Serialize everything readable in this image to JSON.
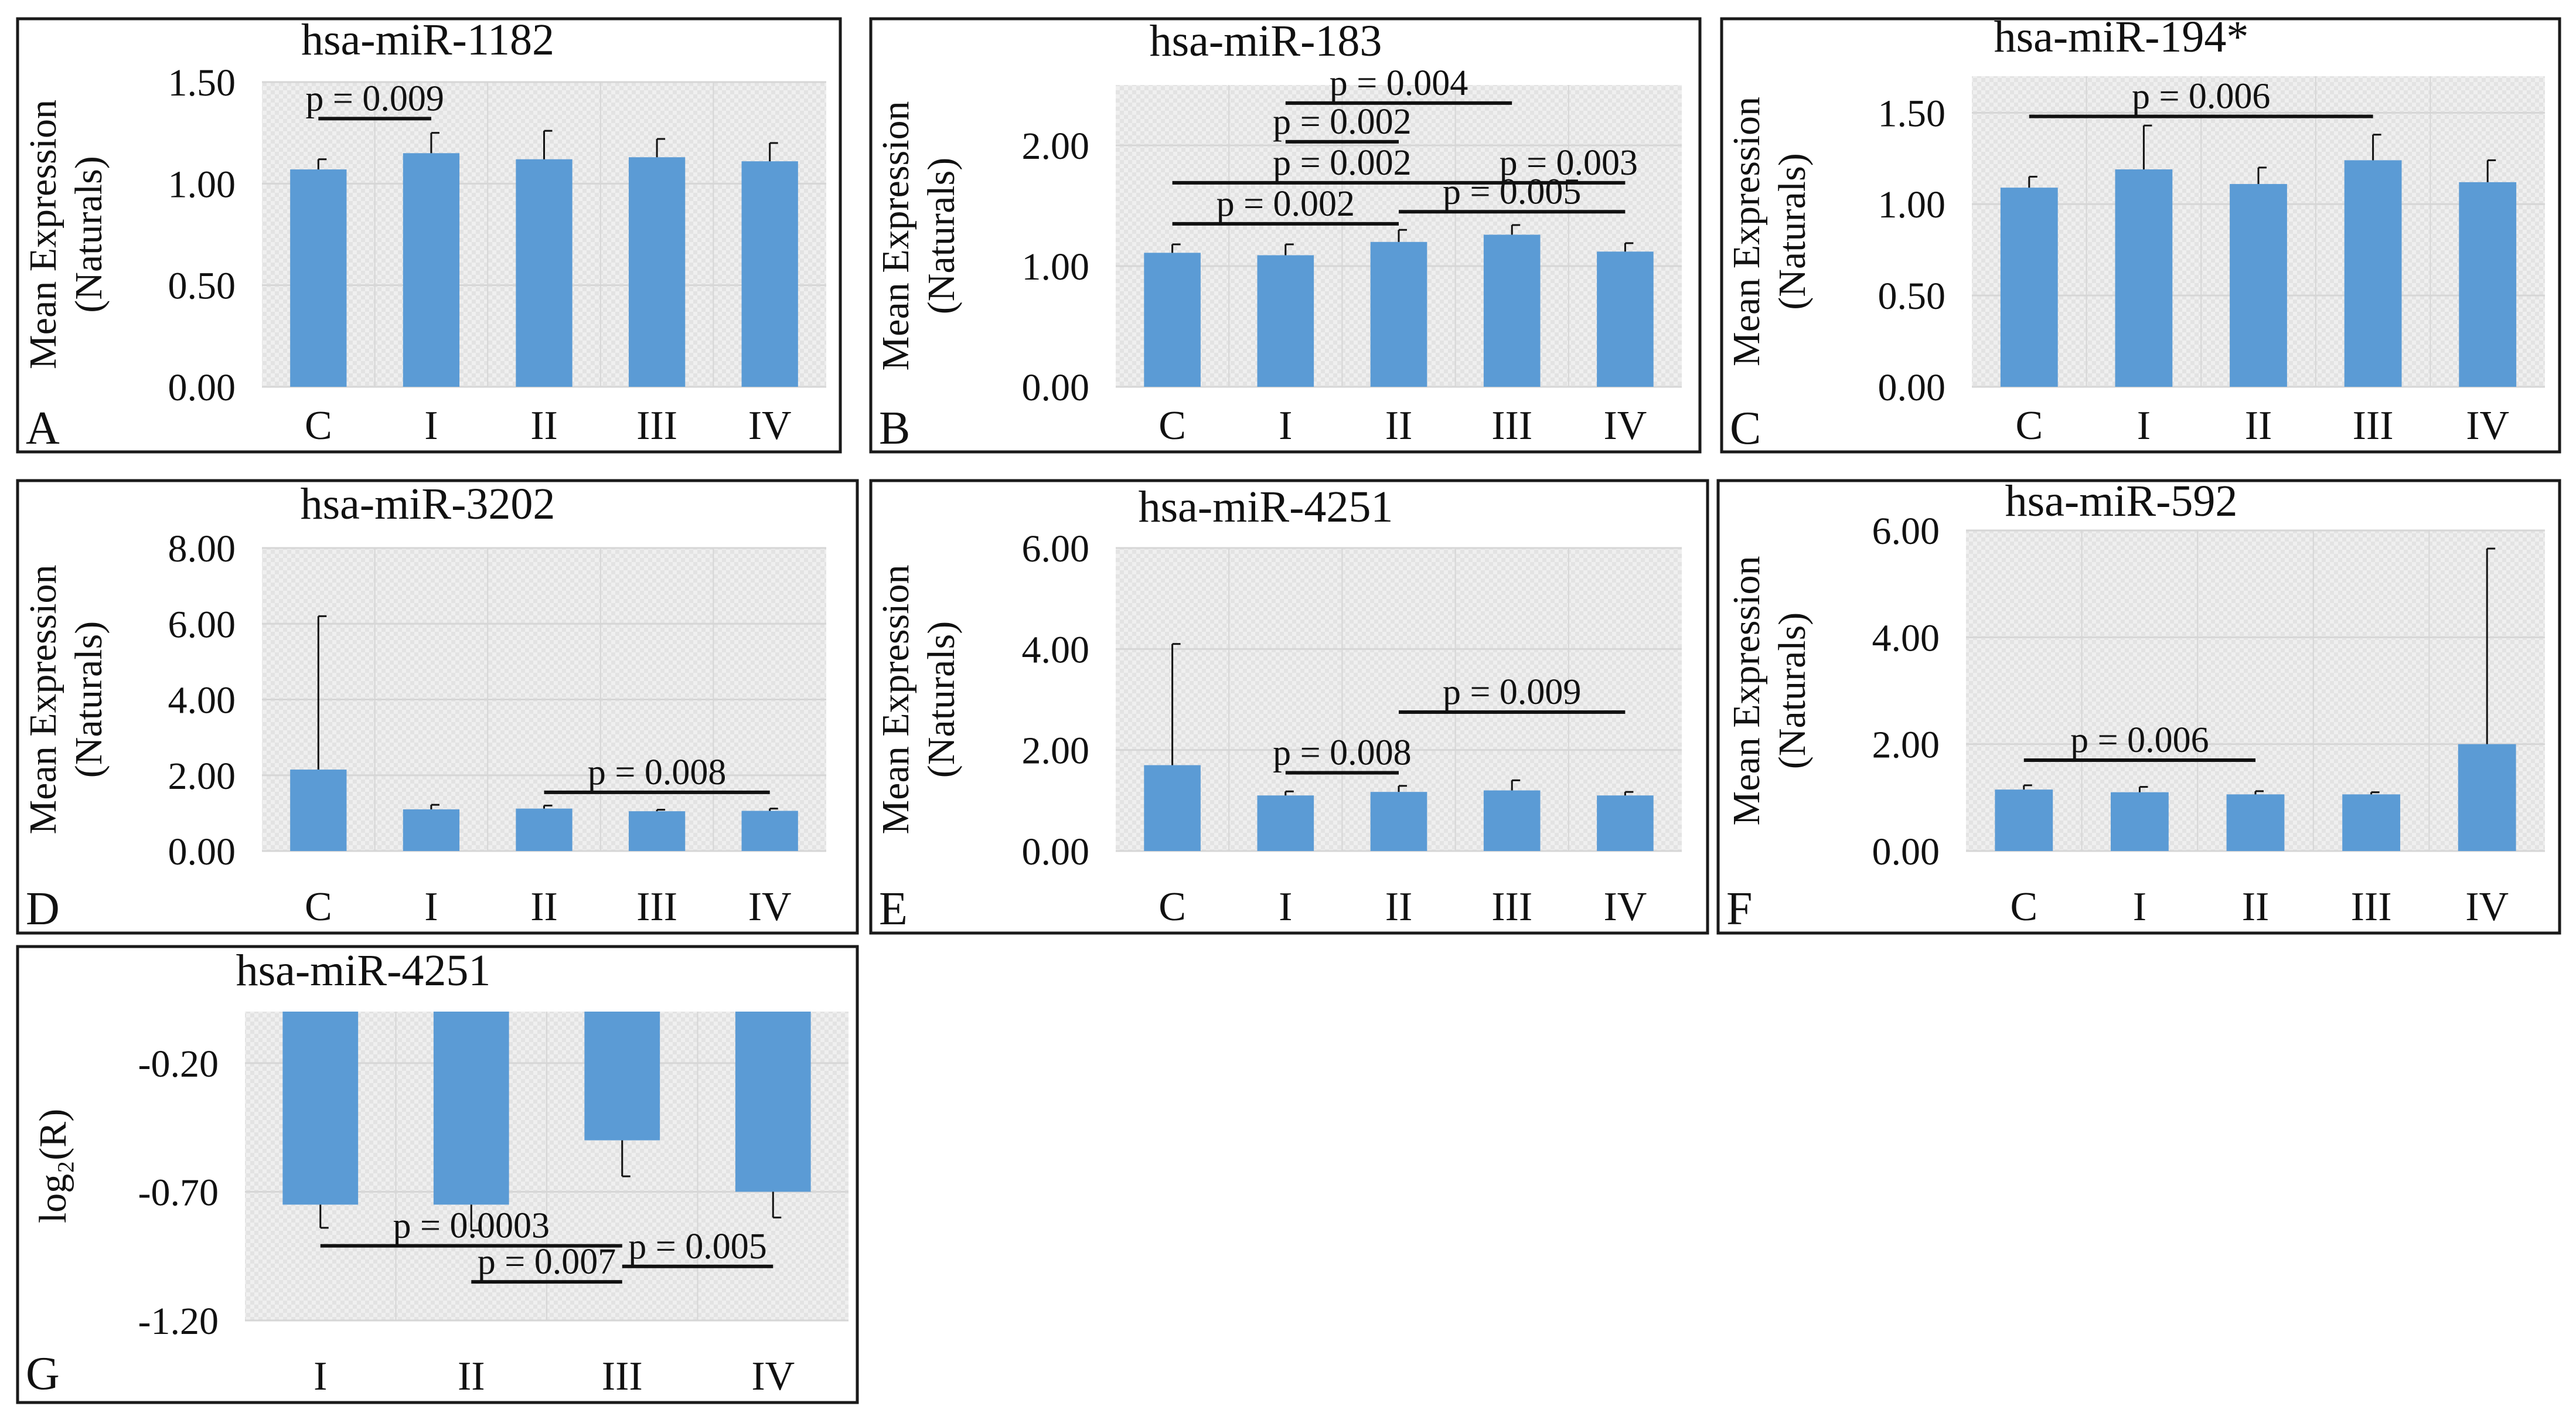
{
  "colors": {
    "bar": "#5b9bd5",
    "plot_bg": "#efefef",
    "grid": "#d6d6d6",
    "frame": "#1a1a1a",
    "bracket": "#111111"
  },
  "chart_data": [
    {
      "panel": "A",
      "type": "bar",
      "title": "hsa-miR-1182",
      "ylabel": [
        "Mean Expression",
        "(Naturals)"
      ],
      "categories": [
        "C",
        "I",
        "II",
        "III",
        "IV"
      ],
      "values": [
        1.07,
        1.15,
        1.12,
        1.13,
        1.11
      ],
      "errors": [
        0.05,
        0.1,
        0.14,
        0.09,
        0.09
      ],
      "ylim": [
        0,
        1.5
      ],
      "yticks": [
        0,
        0.5,
        1.0,
        1.5
      ],
      "ytick_labels": [
        "0.00",
        "0.50",
        "1.00",
        "1.50"
      ],
      "grid": true,
      "brackets": [
        {
          "from": 0,
          "to": 1,
          "y": 1.32,
          "label": "p = 0.009"
        }
      ]
    },
    {
      "panel": "B",
      "type": "bar",
      "title": "hsa-miR-183",
      "ylabel": [
        "Mean Expression",
        "(Naturals)"
      ],
      "categories": [
        "C",
        "I",
        "II",
        "III",
        "IV"
      ],
      "values": [
        1.11,
        1.09,
        1.2,
        1.26,
        1.12
      ],
      "errors": [
        0.07,
        0.09,
        0.1,
        0.08,
        0.07
      ],
      "ylim": [
        0,
        2.5
      ],
      "yticks": [
        0,
        1.0,
        2.0
      ],
      "ytick_labels": [
        "0.00",
        "1.00",
        "2.00"
      ],
      "grid": true,
      "brackets": [
        {
          "from": 1,
          "to": 3,
          "y": 2.35,
          "label": "p = 0.004"
        },
        {
          "from": 1,
          "to": 2,
          "y": 2.03,
          "label": "p = 0.002"
        },
        {
          "from": 0,
          "to": 3,
          "y": 1.69,
          "label": "p = 0.002"
        },
        {
          "from": 3,
          "to": 4,
          "y": 1.69,
          "label": "p = 0.003"
        },
        {
          "from": 0,
          "to": 2,
          "y": 1.35,
          "label": "p = 0.002"
        },
        {
          "from": 2,
          "to": 4,
          "y": 1.45,
          "label": "p = 0.005"
        }
      ]
    },
    {
      "panel": "C",
      "type": "bar",
      "title": "hsa-miR-194*",
      "ylabel": [
        "Mean Expression",
        "(Naturals)"
      ],
      "categories": [
        "C",
        "I",
        "II",
        "III",
        "IV"
      ],
      "values": [
        1.09,
        1.19,
        1.11,
        1.24,
        1.12
      ],
      "errors": [
        0.06,
        0.24,
        0.09,
        0.14,
        0.12
      ],
      "ylim": [
        0,
        1.7
      ],
      "yticks": [
        0,
        0.5,
        1.0,
        1.5
      ],
      "ytick_labels": [
        "0.00",
        "0.50",
        "1.00",
        "1.50"
      ],
      "grid": true,
      "brackets": [
        {
          "from": 0,
          "to": 3,
          "y": 1.48,
          "label": "p = 0.006"
        }
      ]
    },
    {
      "panel": "D",
      "type": "bar",
      "title": "hsa-miR-3202",
      "ylabel": [
        "Mean Expression",
        "(Naturals)"
      ],
      "categories": [
        "C",
        "I",
        "II",
        "III",
        "IV"
      ],
      "values": [
        2.15,
        1.1,
        1.12,
        1.05,
        1.06
      ],
      "errors": [
        4.05,
        0.12,
        0.08,
        0.04,
        0.06
      ],
      "ylim": [
        0,
        8.0
      ],
      "yticks": [
        0,
        2.0,
        4.0,
        6.0,
        8.0
      ],
      "ytick_labels": [
        "0.00",
        "2.00",
        "4.00",
        "6.00",
        "8.00"
      ],
      "grid": true,
      "brackets": [
        {
          "from": 2,
          "to": 4,
          "y": 1.55,
          "label": "p = 0.008"
        }
      ]
    },
    {
      "panel": "E",
      "type": "bar",
      "title": "hsa-miR-4251",
      "ylabel": [
        "Mean Expression",
        "(Naturals)"
      ],
      "categories": [
        "C",
        "I",
        "II",
        "III",
        "IV"
      ],
      "values": [
        1.7,
        1.1,
        1.17,
        1.2,
        1.1
      ],
      "errors": [
        2.4,
        0.08,
        0.12,
        0.2,
        0.07
      ],
      "ylim": [
        0,
        6.0
      ],
      "yticks": [
        0,
        2.0,
        4.0,
        6.0
      ],
      "ytick_labels": [
        "0.00",
        "2.00",
        "4.00",
        "6.00"
      ],
      "grid": true,
      "brackets": [
        {
          "from": 1,
          "to": 2,
          "y": 1.55,
          "label": "p = 0.008"
        },
        {
          "from": 2,
          "to": 4,
          "y": 2.75,
          "label": "p = 0.009"
        }
      ]
    },
    {
      "panel": "F",
      "type": "bar",
      "title": "hsa-miR-592",
      "ylabel": [
        "Mean Expression",
        "(Naturals)"
      ],
      "categories": [
        "C",
        "I",
        "II",
        "III",
        "IV"
      ],
      "values": [
        1.15,
        1.1,
        1.06,
        1.06,
        2.0
      ],
      "errors": [
        0.08,
        0.1,
        0.06,
        0.04,
        3.66
      ],
      "ylim": [
        0,
        6.0
      ],
      "yticks": [
        0,
        2.0,
        4.0,
        6.0
      ],
      "ytick_labels": [
        "0.00",
        "2.00",
        "4.00",
        "6.00"
      ],
      "grid": true,
      "brackets": [
        {
          "from": 0,
          "to": 2,
          "y": 1.7,
          "label": "p = 0.006"
        }
      ]
    },
    {
      "panel": "G",
      "type": "bar",
      "title": "hsa-miR-4251",
      "ylabel": [
        "log₂(R)"
      ],
      "categories": [
        "I",
        "II",
        "III",
        "IV"
      ],
      "values": [
        -0.75,
        -0.75,
        -0.5,
        -0.7
      ],
      "errors": [
        0.09,
        0.1,
        0.14,
        0.1
      ],
      "ylim": [
        -1.2,
        0.0
      ],
      "yticks": [
        -0.2,
        -0.7,
        -1.2
      ],
      "ytick_labels": [
        "-0.20",
        "-0.70",
        "-1.20"
      ],
      "grid": true,
      "brackets": [
        {
          "from": 0,
          "to": 2,
          "y": -0.91,
          "label": "p = 0.0003"
        },
        {
          "from": 1,
          "to": 2,
          "y": -1.05,
          "label": "p = 0.007"
        },
        {
          "from": 2,
          "to": 3,
          "y": -0.99,
          "label": "p = 0.005"
        }
      ]
    }
  ]
}
